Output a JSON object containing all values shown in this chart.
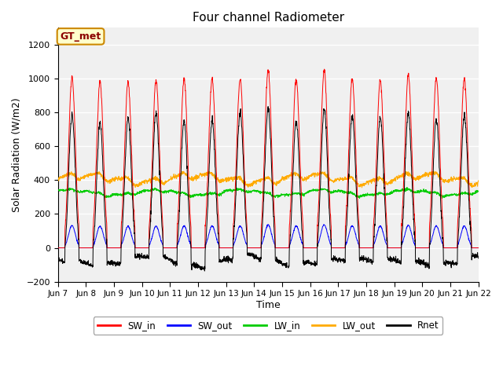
{
  "title": "Four channel Radiometer",
  "xlabel": "Time",
  "ylabel": "Solar Radiation (W/m2)",
  "ylim": [
    -200,
    1300
  ],
  "yticks": [
    -200,
    0,
    200,
    400,
    600,
    800,
    1000,
    1200
  ],
  "start_day": 7,
  "end_day": 22,
  "num_days": 15,
  "annotation": "GT_met",
  "colors": {
    "SW_in": "#ff0000",
    "SW_out": "#0000ff",
    "LW_in": "#00cc00",
    "LW_out": "#ffaa00",
    "Rnet": "#000000"
  },
  "legend_labels": [
    "SW_in",
    "SW_out",
    "LW_in",
    "LW_out",
    "Rnet"
  ],
  "bg_color": "#ffffff",
  "plot_bg": "#f0f0f0",
  "grid_color": "#ffffff",
  "figsize": [
    6.4,
    4.8
  ],
  "dpi": 100
}
